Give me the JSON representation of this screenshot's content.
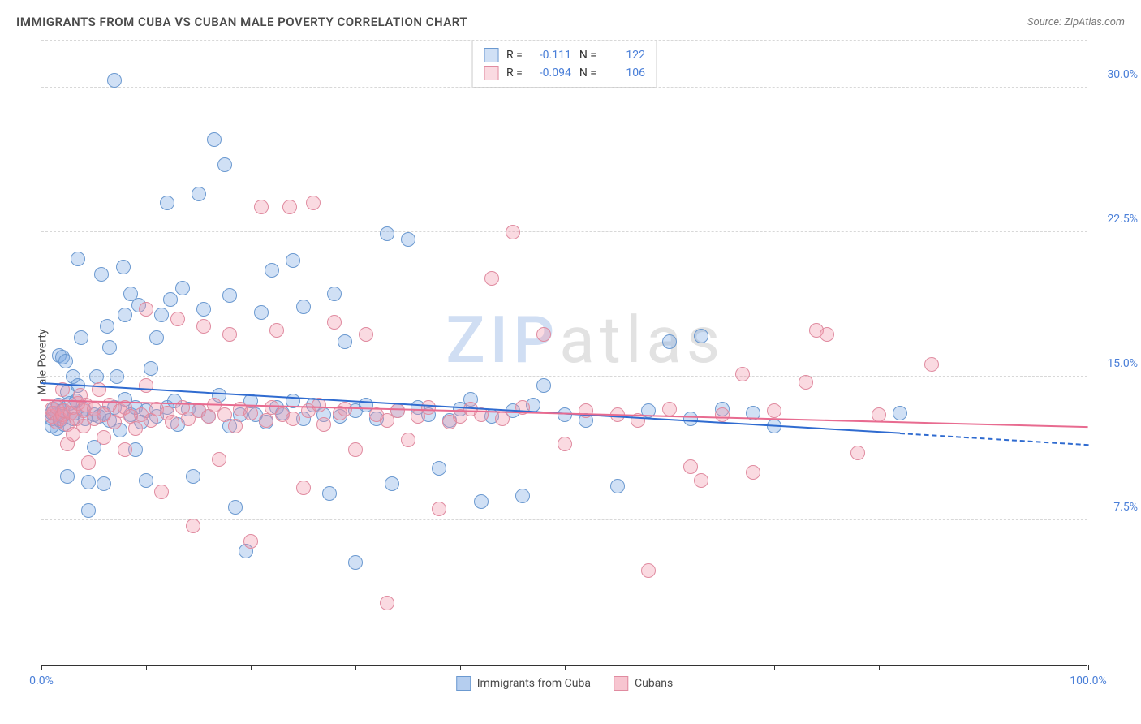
{
  "title": "IMMIGRANTS FROM CUBA VS CUBAN MALE POVERTY CORRELATION CHART",
  "source": "Source: ZipAtlas.com",
  "ylabel": "Male Poverty",
  "watermark": {
    "zip": "ZIP",
    "atlas": "atlas"
  },
  "chart": {
    "type": "scatter",
    "background_color": "#ffffff",
    "grid_color": "#d8d8d8",
    "grid_style": "dashed",
    "axis_color": "#333333",
    "xlim": [
      0,
      100
    ],
    "ylim": [
      0,
      32.5
    ],
    "y_ticks": [
      {
        "v": 7.5,
        "label": "7.5%"
      },
      {
        "v": 15.0,
        "label": "15.0%"
      },
      {
        "v": 22.5,
        "label": "22.5%"
      },
      {
        "v": 30.0,
        "label": "30.0%"
      }
    ],
    "x_ticks": [
      0,
      10,
      20,
      30,
      40,
      50,
      60,
      70,
      80,
      90,
      100
    ],
    "x_tick_labels": [
      {
        "v": 0,
        "label": "0.0%"
      },
      {
        "v": 100,
        "label": "100.0%"
      }
    ],
    "y_tick_label_color": "#4a7fd8",
    "x_tick_label_color": "#4a7fd8",
    "label_fontsize": 14,
    "title_fontsize": 15,
    "marker_radius": 9,
    "marker_border_width": 1.5,
    "marker_fill_opacity": 0.35,
    "trend_line_width": 2
  },
  "series": [
    {
      "name": "Immigrants from Cuba",
      "color_fill": "rgba(120,165,225,0.35)",
      "color_stroke": "#6b99d0",
      "trend_color": "#2f6bd0",
      "R": "-0.111",
      "N": "122",
      "trend": {
        "x0": 0,
        "y0": 14.6,
        "x1": 82,
        "y1": 12.0,
        "dash_x1": 100,
        "dash_y1": 11.4
      },
      "points": [
        [
          1,
          12.8
        ],
        [
          1,
          12.4
        ],
        [
          1,
          13.1
        ],
        [
          1.2,
          13.3
        ],
        [
          1.5,
          13.0
        ],
        [
          1.5,
          12.3
        ],
        [
          1.6,
          13.5
        ],
        [
          1.7,
          16.1
        ],
        [
          1.8,
          12.7
        ],
        [
          2,
          16.0
        ],
        [
          2,
          13.2
        ],
        [
          2,
          12.9
        ],
        [
          2.2,
          12.5
        ],
        [
          2.3,
          15.8
        ],
        [
          2.5,
          9.8
        ],
        [
          2.5,
          14.2
        ],
        [
          2.7,
          13.6
        ],
        [
          3,
          12.8
        ],
        [
          3,
          15.0
        ],
        [
          3.2,
          13.1
        ],
        [
          3.3,
          13.7
        ],
        [
          3.5,
          21.1
        ],
        [
          3.5,
          14.5
        ],
        [
          3.8,
          17.0
        ],
        [
          4,
          13.3
        ],
        [
          4.2,
          12.8
        ],
        [
          4.5,
          9.5
        ],
        [
          4.5,
          8.0
        ],
        [
          5,
          13.0
        ],
        [
          5,
          11.3
        ],
        [
          5.3,
          15.0
        ],
        [
          5.5,
          12.9
        ],
        [
          5.7,
          20.3
        ],
        [
          6,
          13.1
        ],
        [
          6,
          9.4
        ],
        [
          6.3,
          17.6
        ],
        [
          6.5,
          12.7
        ],
        [
          6.5,
          16.5
        ],
        [
          7,
          13.4
        ],
        [
          7,
          30.4
        ],
        [
          7.2,
          15.0
        ],
        [
          7.5,
          12.2
        ],
        [
          7.8,
          20.7
        ],
        [
          8,
          13.8
        ],
        [
          8,
          18.2
        ],
        [
          8.5,
          13.0
        ],
        [
          8.5,
          19.3
        ],
        [
          9,
          11.2
        ],
        [
          9,
          13.4
        ],
        [
          9.3,
          18.7
        ],
        [
          9.5,
          12.6
        ],
        [
          10,
          13.2
        ],
        [
          10,
          9.6
        ],
        [
          10.5,
          15.4
        ],
        [
          11,
          12.9
        ],
        [
          11,
          17.0
        ],
        [
          11.5,
          18.2
        ],
        [
          12,
          13.4
        ],
        [
          12,
          24.0
        ],
        [
          12.3,
          19.0
        ],
        [
          12.7,
          13.7
        ],
        [
          13,
          12.5
        ],
        [
          13.5,
          19.6
        ],
        [
          14,
          13.3
        ],
        [
          14.5,
          9.8
        ],
        [
          15,
          24.5
        ],
        [
          15,
          13.2
        ],
        [
          15.5,
          18.5
        ],
        [
          16,
          12.9
        ],
        [
          16.5,
          27.3
        ],
        [
          17,
          14.0
        ],
        [
          17.5,
          26.0
        ],
        [
          18,
          12.4
        ],
        [
          18,
          19.2
        ],
        [
          18.5,
          8.2
        ],
        [
          19,
          13.0
        ],
        [
          19.5,
          5.9
        ],
        [
          20,
          13.7
        ],
        [
          20.5,
          13.0
        ],
        [
          21,
          18.3
        ],
        [
          21.5,
          12.6
        ],
        [
          22,
          20.5
        ],
        [
          22.5,
          13.4
        ],
        [
          23,
          13.1
        ],
        [
          24,
          13.7
        ],
        [
          24,
          21.0
        ],
        [
          25,
          18.6
        ],
        [
          25,
          12.8
        ],
        [
          26,
          13.5
        ],
        [
          27,
          13.0
        ],
        [
          27.5,
          8.9
        ],
        [
          28,
          19.3
        ],
        [
          28.5,
          12.9
        ],
        [
          29,
          16.8
        ],
        [
          30,
          5.3
        ],
        [
          30,
          13.2
        ],
        [
          31,
          13.5
        ],
        [
          32,
          12.8
        ],
        [
          33,
          22.4
        ],
        [
          33.5,
          9.4
        ],
        [
          34,
          13.2
        ],
        [
          35,
          22.1
        ],
        [
          36,
          13.4
        ],
        [
          37,
          13.0
        ],
        [
          38,
          10.2
        ],
        [
          39,
          12.7
        ],
        [
          40,
          13.3
        ],
        [
          41,
          13.8
        ],
        [
          42,
          8.5
        ],
        [
          43,
          12.9
        ],
        [
          45,
          13.2
        ],
        [
          46,
          8.8
        ],
        [
          47,
          13.5
        ],
        [
          48,
          14.5
        ],
        [
          50,
          13.0
        ],
        [
          52,
          12.7
        ],
        [
          55,
          9.3
        ],
        [
          58,
          13.2
        ],
        [
          60,
          16.8
        ],
        [
          62,
          12.8
        ],
        [
          63,
          17.1
        ],
        [
          65,
          13.3
        ],
        [
          68,
          13.1
        ],
        [
          70,
          12.4
        ],
        [
          82,
          13.1
        ]
      ]
    },
    {
      "name": "Cubans",
      "color_fill": "rgba(240,150,170,0.35)",
      "color_stroke": "#e08ba0",
      "trend_color": "#e86b90",
      "R": "-0.094",
      "N": "106",
      "trend": {
        "x0": 0,
        "y0": 13.7,
        "x1": 100,
        "y1": 12.3
      },
      "points": [
        [
          1,
          12.9
        ],
        [
          1,
          13.3
        ],
        [
          1.2,
          13.1
        ],
        [
          1.5,
          12.6
        ],
        [
          1.5,
          13.4
        ],
        [
          1.8,
          12.8
        ],
        [
          2,
          13.0
        ],
        [
          2,
          14.3
        ],
        [
          2.2,
          13.2
        ],
        [
          2.5,
          12.5
        ],
        [
          2.5,
          11.5
        ],
        [
          2.8,
          13.1
        ],
        [
          3,
          13.4
        ],
        [
          3,
          12.0
        ],
        [
          3.3,
          12.8
        ],
        [
          3.5,
          13.6
        ],
        [
          3.7,
          14.0
        ],
        [
          4,
          12.4
        ],
        [
          4,
          13.2
        ],
        [
          4.3,
          13.5
        ],
        [
          4.5,
          10.5
        ],
        [
          5,
          12.8
        ],
        [
          5,
          13.3
        ],
        [
          5.5,
          14.3
        ],
        [
          6,
          13.0
        ],
        [
          6,
          11.8
        ],
        [
          6.5,
          13.5
        ],
        [
          7,
          12.6
        ],
        [
          7.5,
          13.2
        ],
        [
          8,
          11.2
        ],
        [
          8,
          13.4
        ],
        [
          8.5,
          12.9
        ],
        [
          9,
          12.3
        ],
        [
          9.5,
          13.0
        ],
        [
          10,
          14.5
        ],
        [
          10,
          18.5
        ],
        [
          10.5,
          12.7
        ],
        [
          11,
          13.3
        ],
        [
          11.5,
          9.0
        ],
        [
          12,
          13.1
        ],
        [
          12.5,
          12.6
        ],
        [
          13,
          18.0
        ],
        [
          13.5,
          13.4
        ],
        [
          14,
          12.8
        ],
        [
          14.5,
          7.2
        ],
        [
          15,
          13.2
        ],
        [
          15.5,
          17.6
        ],
        [
          16,
          12.9
        ],
        [
          16.5,
          13.5
        ],
        [
          17,
          10.7
        ],
        [
          17.5,
          13.0
        ],
        [
          18,
          17.2
        ],
        [
          18.5,
          12.4
        ],
        [
          19,
          13.3
        ],
        [
          20,
          6.4
        ],
        [
          20,
          13.1
        ],
        [
          21,
          23.8
        ],
        [
          21.5,
          12.7
        ],
        [
          22,
          13.4
        ],
        [
          22.5,
          17.4
        ],
        [
          23,
          13.0
        ],
        [
          23.7,
          23.8
        ],
        [
          24,
          12.8
        ],
        [
          25,
          9.2
        ],
        [
          25.5,
          13.2
        ],
        [
          26,
          24.0
        ],
        [
          26.5,
          13.5
        ],
        [
          27,
          12.5
        ],
        [
          28,
          17.8
        ],
        [
          28.5,
          13.1
        ],
        [
          29,
          13.3
        ],
        [
          30,
          11.2
        ],
        [
          31,
          17.2
        ],
        [
          32,
          13.0
        ],
        [
          33,
          3.2
        ],
        [
          33,
          12.7
        ],
        [
          34,
          13.2
        ],
        [
          35,
          11.7
        ],
        [
          36,
          12.9
        ],
        [
          37,
          13.4
        ],
        [
          38,
          8.1
        ],
        [
          39,
          12.6
        ],
        [
          40,
          12.9
        ],
        [
          41,
          13.3
        ],
        [
          42,
          13.0
        ],
        [
          43,
          20.1
        ],
        [
          44,
          12.8
        ],
        [
          45,
          22.5
        ],
        [
          46,
          13.4
        ],
        [
          48,
          17.2
        ],
        [
          50,
          11.5
        ],
        [
          52,
          13.2
        ],
        [
          55,
          13.0
        ],
        [
          57,
          12.7
        ],
        [
          58,
          4.9
        ],
        [
          60,
          13.3
        ],
        [
          62,
          10.3
        ],
        [
          63,
          9.6
        ],
        [
          65,
          13.0
        ],
        [
          67,
          15.1
        ],
        [
          68,
          10.0
        ],
        [
          70,
          13.2
        ],
        [
          73,
          14.7
        ],
        [
          74,
          17.4
        ],
        [
          75,
          17.2
        ],
        [
          78,
          11.0
        ],
        [
          80,
          13.0
        ],
        [
          85,
          15.6
        ]
      ]
    }
  ],
  "legend_top": {
    "r_label": "R =",
    "n_label": "N ="
  },
  "legend_bottom": [
    {
      "swatch_fill": "rgba(120,165,225,0.55)",
      "swatch_stroke": "#6b99d0",
      "label": "Immigrants from Cuba"
    },
    {
      "swatch_fill": "rgba(240,150,170,0.55)",
      "swatch_stroke": "#e08ba0",
      "label": "Cubans"
    }
  ]
}
